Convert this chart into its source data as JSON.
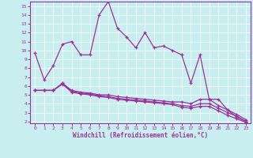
{
  "xlabel": "Windchill (Refroidissement éolien,°C)",
  "bg_color": "#c8eef0",
  "line_color": "#993399",
  "xlim": [
    -0.5,
    23.5
  ],
  "ylim": [
    1.8,
    15.5
  ],
  "yticks": [
    2,
    3,
    4,
    5,
    6,
    7,
    8,
    9,
    10,
    11,
    12,
    13,
    14,
    15
  ],
  "xticks": [
    0,
    1,
    2,
    3,
    4,
    5,
    6,
    7,
    8,
    9,
    10,
    11,
    12,
    13,
    14,
    15,
    16,
    17,
    18,
    19,
    20,
    21,
    22,
    23
  ],
  "line1_x": [
    0,
    1,
    2,
    3,
    4,
    5,
    6,
    7,
    8,
    9,
    10,
    11,
    12,
    13,
    14,
    15,
    16,
    17,
    18,
    19,
    20,
    21,
    22,
    23
  ],
  "line1_y": [
    9.7,
    6.7,
    8.3,
    10.7,
    11.0,
    9.5,
    9.5,
    14.0,
    15.5,
    12.5,
    11.5,
    10.3,
    12.0,
    10.3,
    10.5,
    10.0,
    9.5,
    6.3,
    9.5,
    4.5,
    4.5,
    3.3,
    2.5,
    2.0
  ],
  "line2_x": [
    0,
    1,
    2,
    3,
    4,
    5,
    6,
    7,
    8,
    9,
    10,
    11,
    12,
    13,
    14,
    15,
    16,
    17,
    18,
    19,
    20,
    21,
    22,
    23
  ],
  "line2_y": [
    5.5,
    5.5,
    5.5,
    6.3,
    5.5,
    5.3,
    5.2,
    5.0,
    5.0,
    4.8,
    4.7,
    4.6,
    4.5,
    4.4,
    4.3,
    4.2,
    4.2,
    4.0,
    4.5,
    4.5,
    3.8,
    3.3,
    2.8,
    2.2
  ],
  "line3_x": [
    0,
    1,
    2,
    3,
    4,
    5,
    6,
    7,
    8,
    9,
    10,
    11,
    12,
    13,
    14,
    15,
    16,
    17,
    18,
    19,
    20,
    21,
    22,
    23
  ],
  "line3_y": [
    5.5,
    5.5,
    5.5,
    6.3,
    5.4,
    5.2,
    5.1,
    4.9,
    4.8,
    4.6,
    4.5,
    4.4,
    4.3,
    4.2,
    4.1,
    4.0,
    3.8,
    3.7,
    4.0,
    4.0,
    3.5,
    3.0,
    2.6,
    2.0
  ],
  "line4_x": [
    0,
    1,
    2,
    3,
    4,
    5,
    6,
    7,
    8,
    9,
    10,
    11,
    12,
    13,
    14,
    15,
    16,
    17,
    18,
    19,
    20,
    21,
    22,
    23
  ],
  "line4_y": [
    5.5,
    5.5,
    5.5,
    6.2,
    5.3,
    5.1,
    5.0,
    4.8,
    4.7,
    4.5,
    4.4,
    4.3,
    4.2,
    4.1,
    4.0,
    3.9,
    3.6,
    3.5,
    3.7,
    3.7,
    3.2,
    2.7,
    2.3,
    1.9
  ]
}
